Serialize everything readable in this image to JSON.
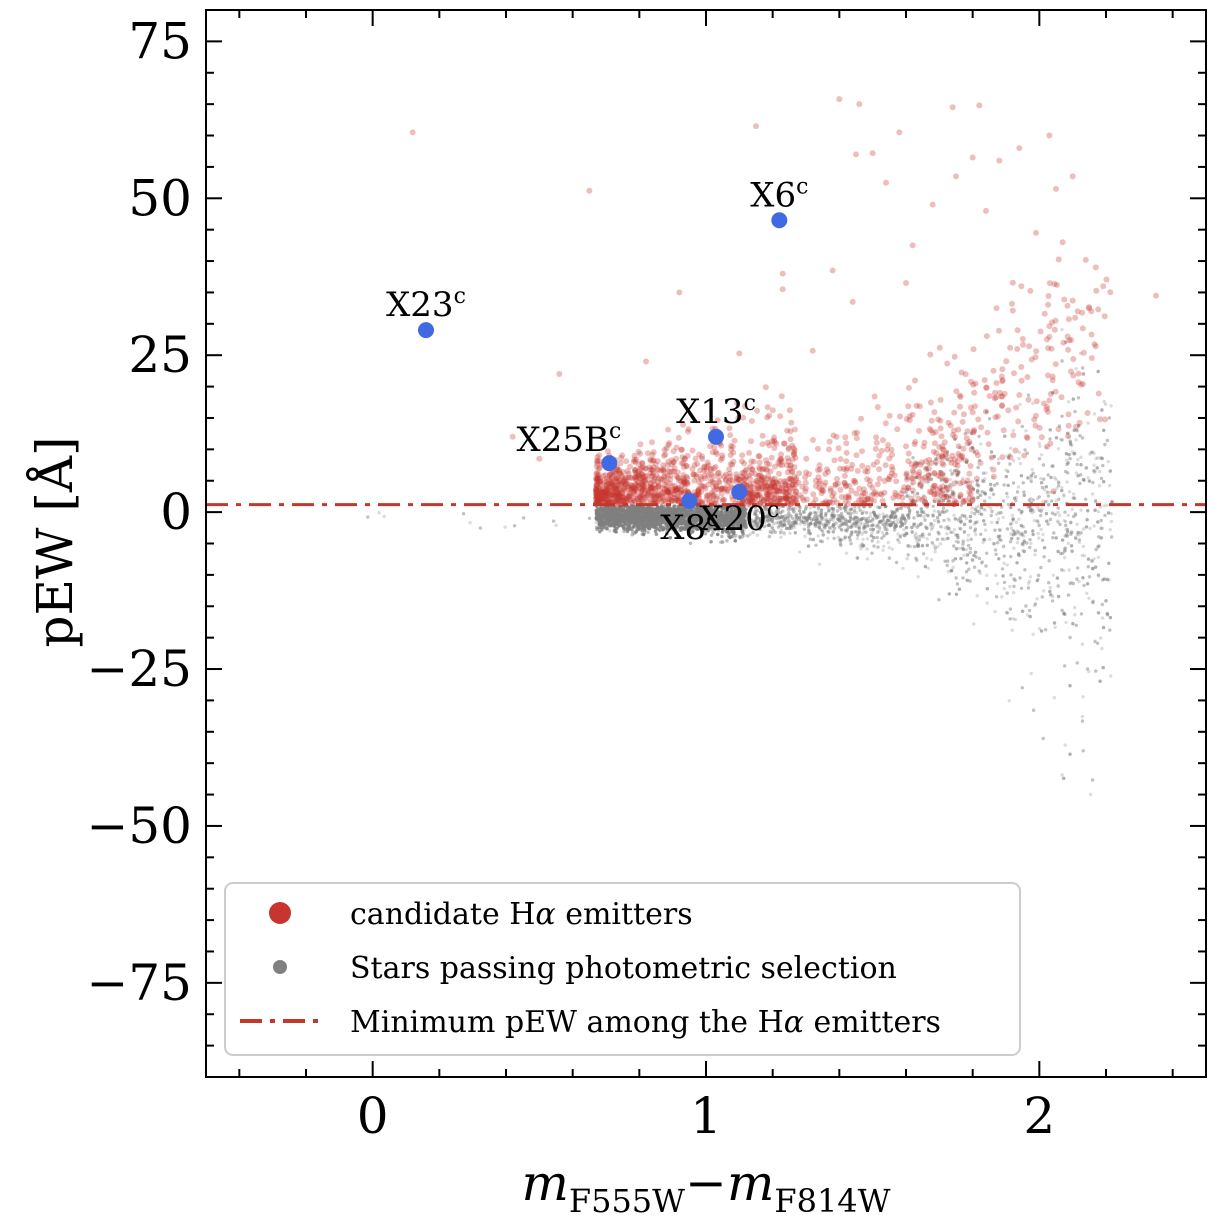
{
  "chart_data": {
    "type": "scatter",
    "xlabel": "m_F555W − m_F814W",
    "xlabel_parts": {
      "m1": "m",
      "sub1": "F555W",
      "minus": "−",
      "m2": "m",
      "sub2": "F814W"
    },
    "ylabel": "pEW [Å]",
    "xlim": [
      -0.5,
      2.5
    ],
    "ylim": [
      -90,
      80
    ],
    "xticks": [
      0,
      1,
      2
    ],
    "xtick_labels": [
      "0",
      "1",
      "2"
    ],
    "yticks": [
      -75,
      -50,
      -25,
      0,
      25,
      50,
      75
    ],
    "ytick_labels": [
      "−75",
      "−50",
      "−25",
      "0",
      "25",
      "50",
      "75"
    ],
    "grid": false,
    "legend_position": "lower-center",
    "threshold_line": {
      "name": "Minimum pEW among the Hα emitters",
      "y": 1.2,
      "color": "#c0392b",
      "style": "dash-dot"
    },
    "series": [
      {
        "name": "candidate Hα emitters",
        "color": "#c8352f",
        "marker": "large-circle"
      },
      {
        "name": "Stars passing photometric selection",
        "color": "#808080",
        "marker": "small-circle"
      }
    ],
    "legend": [
      {
        "label_prefix": "candidate H",
        "label_greek": "α",
        "label_suffix": " emitters",
        "kind": "big-dot",
        "color": "#c8352f"
      },
      {
        "label_prefix": "Stars passing photometric selection",
        "label_greek": "",
        "label_suffix": "",
        "kind": "small-dot",
        "color": "#808080"
      },
      {
        "label_prefix": "Minimum pEW among the H",
        "label_greek": "α",
        "label_suffix": " emitters",
        "kind": "dashdot",
        "color": "#c0392b"
      }
    ],
    "highlighted_points": [
      {
        "label": "X23",
        "sup": "c",
        "x": 0.16,
        "y": 29,
        "label_pos": "above"
      },
      {
        "label": "X6",
        "sup": "c",
        "x": 1.22,
        "y": 46.5,
        "label_pos": "above"
      },
      {
        "label": "X13",
        "sup": "c",
        "x": 1.03,
        "y": 12,
        "label_pos": "above"
      },
      {
        "label": "X25B",
        "sup": "c",
        "x": 0.71,
        "y": 7.8,
        "label_pos": "above-left"
      },
      {
        "label": "X8",
        "sup": "c",
        "x": 0.95,
        "y": 1.8,
        "label_pos": "below"
      },
      {
        "label": "X20",
        "sup": "c",
        "x": 1.1,
        "y": 3.2,
        "label_pos": "below"
      }
    ],
    "highlight_color": "#4169e1",
    "red_outliers": [
      [
        0.12,
        60.5
      ],
      [
        0.65,
        51.2
      ],
      [
        1.15,
        61.5
      ],
      [
        1.4,
        65.8
      ],
      [
        1.46,
        65
      ],
      [
        1.58,
        60.5
      ],
      [
        1.74,
        64.5
      ],
      [
        1.82,
        64.8
      ],
      [
        1.94,
        58
      ],
      [
        2.03,
        60
      ],
      [
        1.45,
        57
      ],
      [
        1.5,
        57.2
      ],
      [
        1.8,
        56.5
      ],
      [
        1.88,
        56
      ],
      [
        1.54,
        52.5
      ],
      [
        1.68,
        49
      ],
      [
        2.1,
        53.5
      ],
      [
        2.05,
        51.5
      ],
      [
        1.75,
        53.5
      ],
      [
        1.62,
        42.5
      ],
      [
        1.23,
        38
      ],
      [
        1.23,
        35.5
      ],
      [
        0.92,
        35
      ],
      [
        1.6,
        36.5
      ],
      [
        1.44,
        33.5
      ],
      [
        1.84,
        48
      ],
      [
        1.99,
        44.5
      ],
      [
        2.07,
        43
      ],
      [
        2.35,
        34.5
      ],
      [
        1.1,
        25.3
      ],
      [
        1.32,
        25.7
      ],
      [
        0.82,
        24
      ],
      [
        0.56,
        22
      ],
      [
        0.5,
        8.5
      ],
      [
        0.42,
        12
      ],
      [
        1.38,
        38.5
      ]
    ]
  }
}
